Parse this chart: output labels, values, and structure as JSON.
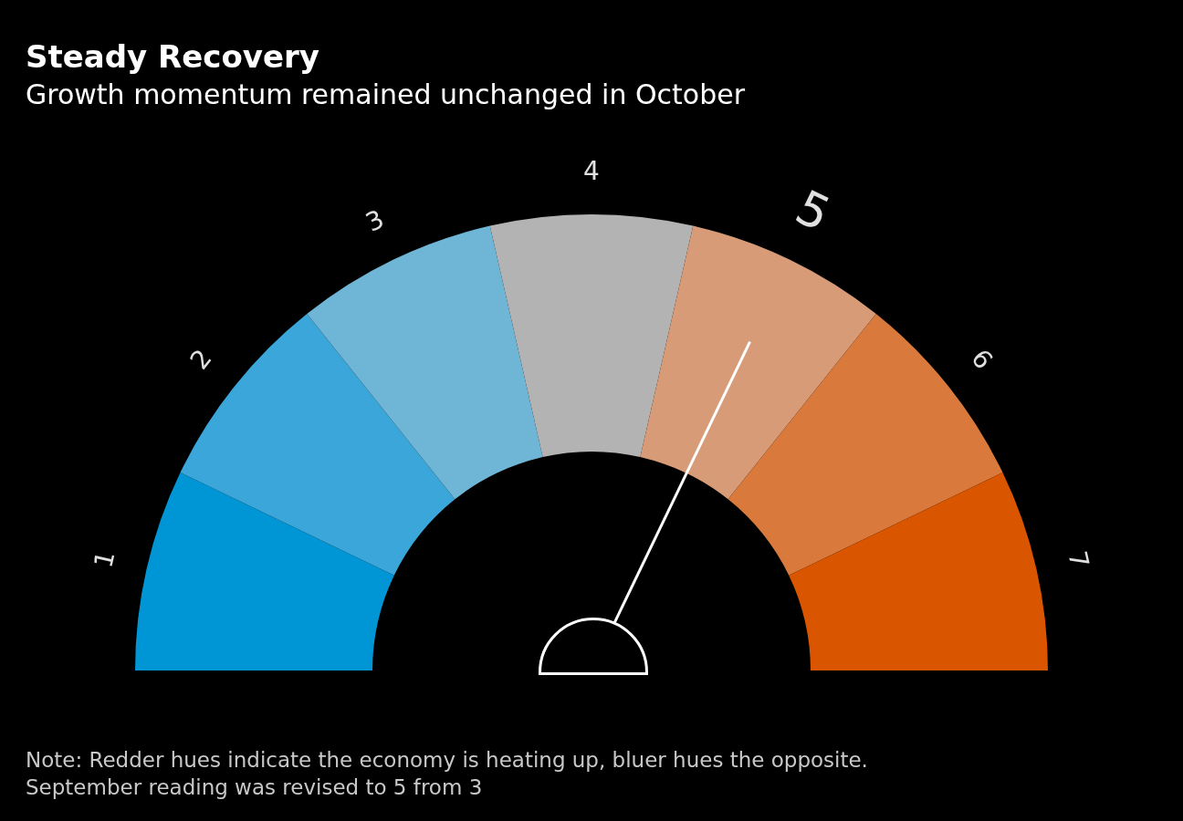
{
  "chart_data": {
    "type": "donut",
    "title": "Steady Recovery",
    "subtitle": "Growth momentum remained unchanged in October",
    "categories": [
      "1",
      "2",
      "3",
      "4",
      "5",
      "6",
      "7"
    ],
    "values": [
      14.2857,
      14.2857,
      14.2857,
      14.2857,
      14.2857,
      14.2857,
      14.2857
    ],
    "colors": [
      "#0096d6",
      "#3aa6d9",
      "#6fb5d6",
      "#b3b3b3",
      "#d89b78",
      "#d97a3c",
      "#d95500"
    ],
    "needle": "5",
    "annotations": [
      "Note: Redder hues indicate the economy is heating up, bluer hues the opposite.",
      "September reading was revised to 5 from 3"
    ]
  }
}
